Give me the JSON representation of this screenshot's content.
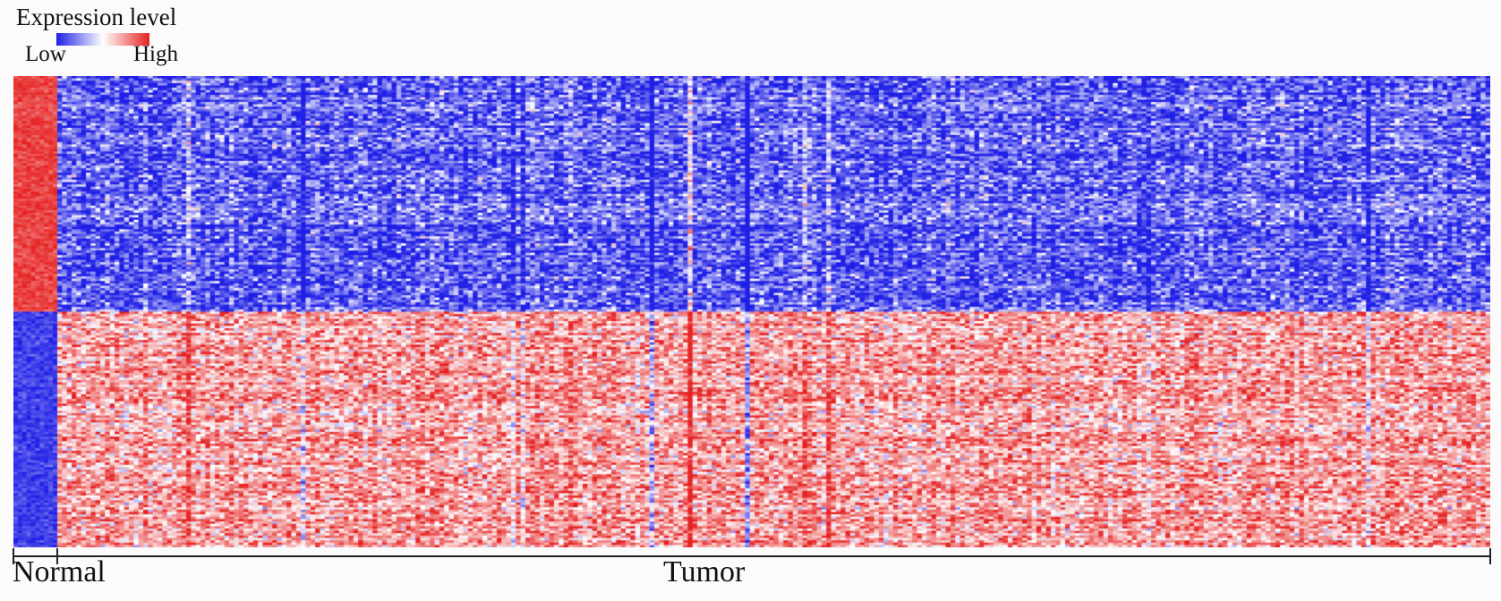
{
  "legend": {
    "title": "Expression level",
    "low_label": "Low",
    "high_label": "High",
    "colors": {
      "low": "#1f1fe6",
      "mid": "#ffffff",
      "high": "#e62222"
    }
  },
  "chart_data": {
    "type": "heatmap",
    "groups": [
      {
        "label": "Normal",
        "samples": 10
      },
      {
        "label": "Tumor",
        "samples": 300
      }
    ],
    "genes": {
      "upregulated_in_normal": 100,
      "downregulated_in_normal": 100
    },
    "pattern": {
      "normal": {
        "top_block": "high",
        "bottom_block": "low"
      },
      "tumor": {
        "top_block": "low",
        "bottom_block": "high"
      }
    },
    "colorscale": [
      "#1f1fe6",
      "#ffffff",
      "#e62222"
    ]
  }
}
